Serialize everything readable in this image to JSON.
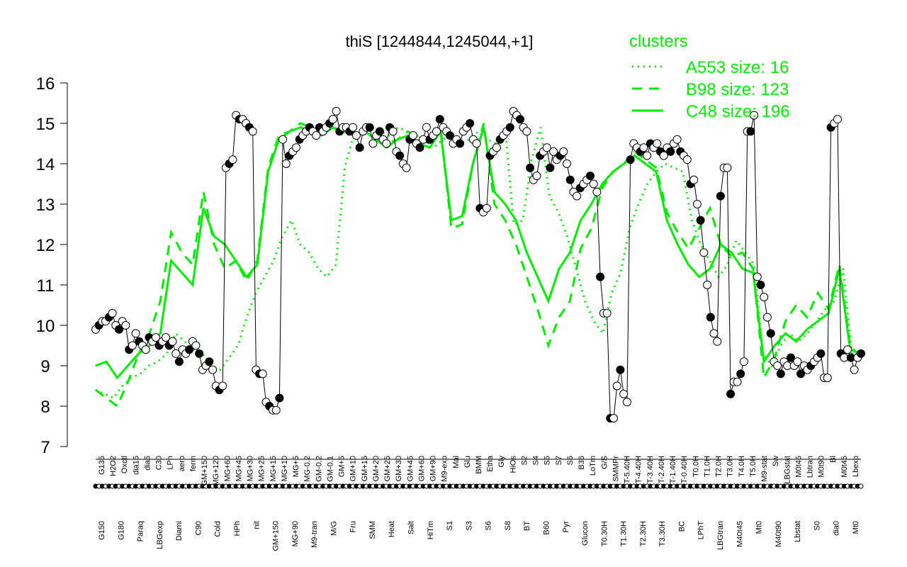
{
  "chart_data": {
    "type": "line",
    "title": "thiS [1244844,1245044,+1]",
    "ylim": [
      7,
      16
    ],
    "yticks": [
      7,
      8,
      9,
      10,
      11,
      12,
      13,
      14,
      15,
      16
    ],
    "grid": false,
    "legend": {
      "title": "clusters",
      "placement": "top-right",
      "entries": [
        {
          "label": "A553 size: 16",
          "style": "dotted"
        },
        {
          "label": "B98 size: 123",
          "style": "dashed"
        },
        {
          "label": "C48 size: 196",
          "style": "solid"
        }
      ]
    },
    "colors": {
      "cluster_lines": "#00ee00",
      "data_line": "#000000",
      "point_fill_a": "#ffffff",
      "point_fill_b": "#000000"
    },
    "x_labels_upper": [
      "G135",
      "H2O2",
      "Oxctl",
      "dia15",
      "dia5",
      "C30",
      "LPh",
      "aero",
      "ferm",
      "GM+150",
      "MG+120",
      "MG+60",
      "MG+45",
      "MG+30",
      "MG+25",
      "MG+15",
      "MG+10",
      "MG+5",
      "MG-0.2",
      "GM-0.2",
      "GM-0.1",
      "GM+5",
      "GM+10",
      "GM+15",
      "GM+20",
      "GM+25",
      "GM+30",
      "GM+45",
      "GM+60",
      "GM+90",
      "M9-exp",
      "Mal",
      "Glu",
      "BMM",
      "Etha",
      "Gly",
      "HiOs",
      "S2",
      "S4",
      "S5",
      "S7",
      "S6",
      "B36",
      "LoTm",
      "G/S",
      "SMMPr",
      "T-5.40H",
      "T-4.40H",
      "T-3.40H",
      "T-2.40H",
      "T-1.40H",
      "T-0.40H",
      "T0.0H",
      "T1.0H",
      "T2.0H",
      "T3.0H",
      "T4.0H",
      "T5.0H",
      "M9-stat",
      "Sw",
      "LBGstat",
      "M0t45",
      "Lbtran",
      "M0t90",
      "Bl",
      "M0t45",
      "Lbexp"
    ],
    "x_labels_lower": [
      "G150",
      "G180",
      "Paraq",
      "LBGexp",
      "Diami",
      "C90",
      "Cold",
      "HPh",
      "nit",
      "GM+150",
      "MG+90",
      "M9-tran",
      "M/G",
      "Fru",
      "SMM",
      "Heat",
      "Salt",
      "HiTm",
      "S1",
      "S3",
      "S6",
      "S8",
      "BT",
      "B60",
      "Pyr",
      "Glucon",
      "T0.30H",
      "T1.30H",
      "T2.30H",
      "T3.30H",
      "BC",
      "LPhT",
      "LBGtran",
      "M40t45",
      "Mt0",
      "M40t90",
      "Lbstat",
      "S0",
      "dia0",
      "Mt0"
    ],
    "series": [
      {
        "values": [
          9.9,
          10.0,
          10.1,
          10.1,
          10.2,
          10.3,
          10.0,
          9.9,
          10.1,
          10.0,
          9.4,
          9.5,
          9.8,
          9.6,
          9.5,
          9.4,
          9.7,
          9.6,
          9.7,
          9.5,
          9.6,
          9.7,
          9.5,
          9.6,
          9.3,
          9.1,
          9.4,
          9.3,
          9.4,
          9.6,
          9.5,
          9.3,
          8.9,
          9.0,
          9.1,
          8.9,
          8.5,
          8.4,
          8.5,
          13.9,
          14.0,
          14.1,
          15.2,
          15.1,
          15.1,
          15.0,
          14.9,
          14.8,
          8.9,
          8.8,
          8.8,
          8.1,
          8.0,
          7.9,
          7.9,
          8.2,
          14.6,
          14.0,
          14.2,
          14.3,
          14.4,
          14.6,
          14.7,
          14.8,
          14.9,
          14.8,
          14.7,
          14.9,
          14.8,
          14.9,
          15.0,
          15.1,
          15.3,
          14.8,
          14.9,
          14.9,
          14.8,
          14.9,
          14.7,
          14.4,
          14.8,
          14.9,
          14.9,
          14.5,
          14.7,
          14.8,
          14.6,
          14.5,
          14.9,
          14.8,
          14.3,
          14.2,
          14.0,
          13.9,
          14.6,
          14.7,
          14.5,
          14.4,
          14.6,
          14.9,
          14.6,
          14.7,
          14.8,
          15.1,
          14.9,
          14.8,
          14.7,
          14.5,
          14.6,
          14.5,
          14.8,
          14.9,
          15.0,
          14.6,
          14.5,
          12.9,
          12.8,
          12.9,
          14.2,
          14.3,
          14.4,
          14.6,
          14.7,
          14.8,
          14.9,
          15.3,
          15.2,
          15.1,
          14.9,
          14.8,
          13.9,
          13.6,
          13.7,
          14.2,
          14.3,
          14.4,
          13.9,
          14.3,
          14.1,
          14.2,
          14.3,
          14.0,
          13.6,
          13.3,
          13.2,
          13.4,
          13.5,
          13.6,
          13.7,
          13.5,
          13.3,
          11.2,
          10.3,
          10.3,
          7.7,
          7.7,
          8.5,
          8.9,
          8.3,
          8.1,
          14.1,
          14.5,
          14.4,
          14.3,
          14.4,
          14.2,
          14.5,
          14.4,
          14.5,
          14.3,
          14.2,
          14.4,
          14.3,
          14.5,
          14.6,
          14.3,
          14.2,
          14.1,
          13.5,
          13.6,
          13.0,
          12.6,
          11.8,
          11.0,
          10.2,
          9.8,
          9.6,
          13.2,
          13.9,
          13.9,
          8.3,
          8.6,
          8.6,
          8.8,
          9.1,
          14.8,
          14.8,
          15.2,
          11.2,
          11.0,
          10.7,
          10.2,
          9.8,
          9.1,
          9.0,
          8.8,
          9.1,
          9.0,
          9.2,
          9.0,
          9.1,
          8.8,
          9.0,
          8.9,
          9.0,
          9.1,
          9.2,
          9.3,
          8.7,
          8.7,
          14.9,
          15.0,
          15.1,
          9.3,
          9.2,
          9.4,
          9.2,
          8.9,
          9.2,
          9.3
        ]
      }
    ],
    "clusters": [
      {
        "name": "A553 size: 16",
        "style": "dotted",
        "values": [
          8.4,
          8.3,
          8.2,
          8.5,
          8.7,
          8.8,
          9.0,
          9.1,
          9.3,
          9.8,
          9.6,
          9.4,
          9.3,
          9.0,
          8.9,
          9.2,
          9.5,
          10.2,
          10.8,
          11.2,
          11.6,
          12.2,
          12.6,
          12.0,
          11.8,
          11.4,
          11.2,
          11.5,
          13.9,
          14.7,
          14.8,
          14.9,
          14.8,
          14.7,
          14.9,
          14.8,
          14.7,
          14.6,
          14.4,
          14.6,
          14.7,
          14.5,
          14.6,
          14.8,
          14.6,
          14.5,
          14.9,
          12.5,
          12.6,
          14.1,
          14.9,
          13.2,
          12.8,
          12.2,
          11.4,
          10.6,
          10.1,
          9.8,
          10.8,
          11.3,
          12.4,
          13.0,
          13.5,
          13.8,
          14.0,
          13.9,
          13.8,
          12.6,
          12.0,
          11.6,
          11.2,
          11.5,
          12.1,
          11.8,
          11.5,
          9.3,
          9.0,
          9.5,
          9.8,
          9.6,
          9.8,
          10.1,
          10.4,
          10.6,
          11.4,
          9.3,
          9.2
        ]
      },
      {
        "name": "B98 size: 123",
        "style": "dashed",
        "values": [
          8.4,
          8.2,
          8.0,
          8.6,
          9.3,
          9.8,
          10.6,
          12.3,
          11.8,
          11.5,
          13.3,
          12.0,
          11.4,
          11.6,
          11.1,
          11.6,
          13.9,
          14.7,
          14.8,
          15.0,
          14.9,
          14.8,
          14.9,
          14.8,
          14.7,
          14.8,
          14.6,
          14.5,
          14.6,
          14.8,
          14.6,
          14.5,
          14.9,
          12.4,
          12.5,
          14.0,
          15.0,
          13.0,
          12.6,
          12.0,
          11.2,
          10.4,
          9.5,
          10.2,
          10.6,
          11.9,
          12.4,
          13.4,
          13.8,
          14.0,
          14.3,
          14.1,
          13.9,
          12.8,
          12.3,
          11.9,
          12.4,
          12.9,
          12.0,
          11.7,
          11.8,
          11.4,
          8.7,
          9.2,
          10.1,
          10.5,
          10.2,
          10.8,
          10.4,
          11.5,
          9.5,
          9.2
        ]
      },
      {
        "name": "C48 size: 196",
        "style": "solid",
        "values": [
          9.0,
          9.1,
          8.7,
          9.0,
          9.3,
          9.5,
          9.8,
          11.6,
          11.3,
          11.0,
          12.9,
          12.2,
          12.0,
          11.6,
          11.2,
          11.5,
          13.8,
          14.6,
          14.8,
          14.9,
          14.8,
          14.7,
          14.9,
          14.8,
          14.7,
          14.8,
          14.6,
          14.4,
          14.6,
          14.7,
          14.5,
          14.4,
          14.8,
          12.6,
          12.7,
          14.0,
          14.9,
          13.3,
          13.0,
          12.6,
          11.8,
          11.2,
          10.6,
          11.4,
          11.8,
          12.6,
          13.0,
          13.5,
          13.8,
          14.0,
          14.2,
          14.0,
          13.8,
          12.6,
          12.0,
          11.5,
          11.2,
          11.4,
          12.0,
          11.8,
          11.4,
          11.3,
          9.1,
          9.5,
          9.8,
          9.6,
          9.9,
          10.1,
          10.3,
          11.4,
          9.4,
          9.3
        ]
      }
    ]
  }
}
